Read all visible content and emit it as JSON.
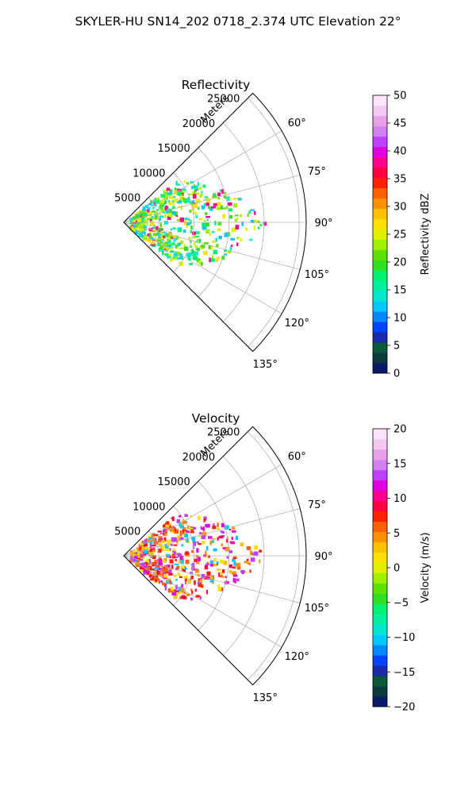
{
  "figure": {
    "suptitle": "SKYLER-HU  SN14_202  0718_2.374 UTC Elevation 22°"
  },
  "chart_data": [
    {
      "type": "polar-sector",
      "title": "Reflectivity",
      "radial_axis_label": "Meters",
      "radial_ticks": [
        "5000",
        "10000",
        "15000",
        "20000",
        "25000"
      ],
      "angle_ticks": [
        "60°",
        "75°",
        "90°",
        "105°",
        "120°",
        "135°"
      ],
      "theta_range_deg": [
        45,
        135
      ],
      "r_max": 26000,
      "grid": true,
      "colorbar": {
        "label": "Reflectivity dBZ",
        "min": 0,
        "max": 50,
        "ticks": [
          "0",
          "5",
          "10",
          "15",
          "20",
          "25",
          "30",
          "35",
          "40",
          "45",
          "50"
        ],
        "colors": [
          "#0a1a6b",
          "#0a3a3a",
          "#0a5a3a",
          "#1a2aa8",
          "#0044ff",
          "#0088ff",
          "#00c8ff",
          "#00e8d0",
          "#00f0a0",
          "#00f070",
          "#30e020",
          "#60e000",
          "#a0f000",
          "#e0f000",
          "#ffe000",
          "#ffc000",
          "#ff9000",
          "#ff6000",
          "#ff2000",
          "#ff0040",
          "#ff0090",
          "#e000e0",
          "#c040ff",
          "#d080f0",
          "#e8a0e8",
          "#f4c8f0",
          "#fce4fa"
        ]
      }
    },
    {
      "type": "polar-sector",
      "title": "Velocity",
      "radial_axis_label": "Meters",
      "radial_ticks": [
        "5000",
        "10000",
        "15000",
        "20000",
        "25000"
      ],
      "angle_ticks": [
        "60°",
        "75°",
        "90°",
        "105°",
        "120°",
        "135°"
      ],
      "theta_range_deg": [
        45,
        135
      ],
      "r_max": 26000,
      "grid": true,
      "colorbar": {
        "label": "Velocity (m/s)",
        "min": -20,
        "max": 20,
        "ticks": [
          "−20",
          "−15",
          "−10",
          "−5",
          "0",
          "5",
          "10",
          "15",
          "20"
        ],
        "colors": [
          "#0a1a6b",
          "#0a3a3a",
          "#0a5a3a",
          "#1a2aa8",
          "#0044ff",
          "#0088ff",
          "#00c8ff",
          "#00e8d0",
          "#00f0a0",
          "#00f070",
          "#30e020",
          "#60e000",
          "#a0f000",
          "#e0f000",
          "#ffe000",
          "#ffc000",
          "#ff9000",
          "#ff6000",
          "#ff2000",
          "#ff0040",
          "#ff0090",
          "#e000e0",
          "#c040ff",
          "#d080f0",
          "#e8a0e8",
          "#f4c8f0",
          "#fce4fa"
        ]
      }
    }
  ]
}
